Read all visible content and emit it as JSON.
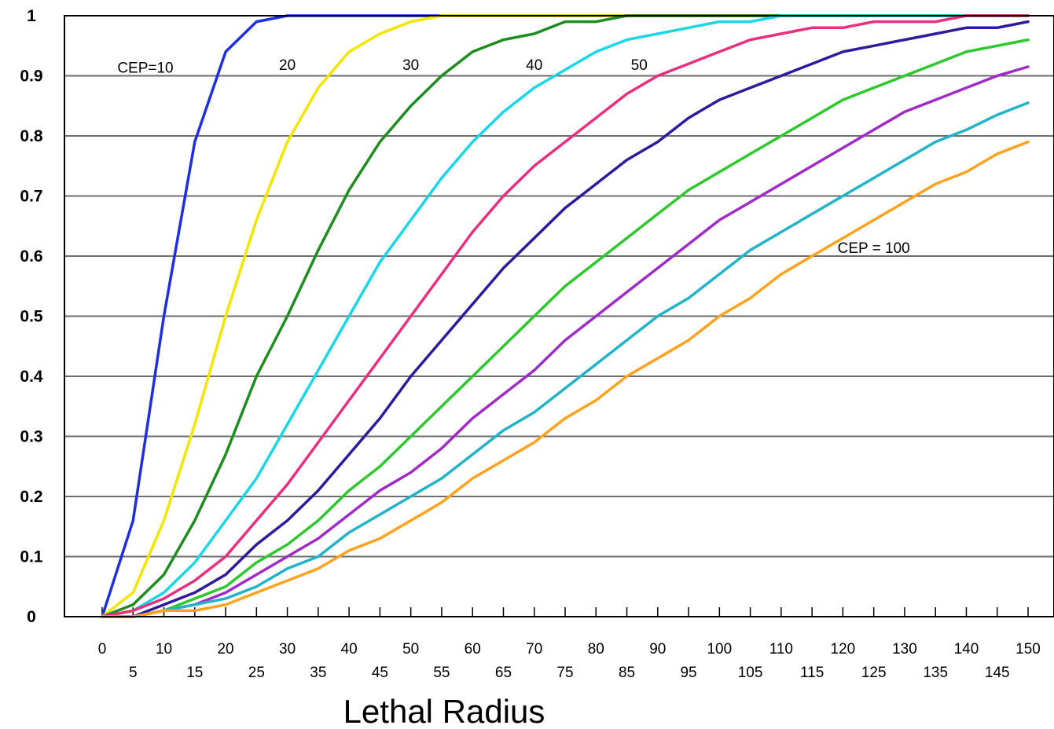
{
  "chart_data": {
    "type": "line",
    "title": "",
    "xlabel": "Lethal Radius",
    "ylabel": "",
    "xlim": [
      0,
      150
    ],
    "ylim": [
      0,
      1
    ],
    "grid": "horizontal",
    "x_ticks_upper": [
      "0",
      "10",
      "20",
      "30",
      "40",
      "50",
      "60",
      "70",
      "80",
      "90",
      "100",
      "110",
      "120",
      "130",
      "140",
      "150"
    ],
    "x_ticks_lower": [
      "5",
      "15",
      "25",
      "35",
      "45",
      "55",
      "65",
      "75",
      "85",
      "95",
      "105",
      "115",
      "125",
      "135",
      "145"
    ],
    "y_ticks": [
      "0",
      "0.1",
      "0.2",
      "0.3",
      "0.4",
      "0.5",
      "0.6",
      "0.7",
      "0.8",
      "0.9",
      "1"
    ],
    "x": [
      0,
      5,
      10,
      15,
      20,
      25,
      30,
      35,
      40,
      45,
      50,
      55,
      60,
      65,
      70,
      75,
      80,
      85,
      90,
      95,
      100,
      105,
      110,
      115,
      120,
      125,
      130,
      135,
      140,
      145,
      150
    ],
    "annotations": [
      {
        "text": "CEP=10",
        "x": 7,
        "y": 0.905
      },
      {
        "text": "20",
        "x": 30,
        "y": 0.91
      },
      {
        "text": "30",
        "x": 50,
        "y": 0.91
      },
      {
        "text": "40",
        "x": 70,
        "y": 0.91
      },
      {
        "text": "50",
        "x": 87,
        "y": 0.91
      },
      {
        "text": "CEP = 100",
        "x": 125,
        "y": 0.605
      }
    ],
    "series": [
      {
        "color": "#1f2ee0",
        "values": [
          0,
          0.16,
          0.5,
          0.79,
          0.94,
          0.99,
          1,
          1,
          1,
          1,
          1,
          1,
          1,
          1,
          1,
          1,
          1,
          1,
          1,
          1,
          1,
          1,
          1,
          1,
          1,
          1,
          1,
          1,
          1,
          1,
          1
        ]
      },
      {
        "color": "#f2e600",
        "values": [
          0,
          0.04,
          0.16,
          0.32,
          0.5,
          0.66,
          0.79,
          0.88,
          0.94,
          0.97,
          0.99,
          1,
          1,
          1,
          1,
          1,
          1,
          1,
          1,
          1,
          1,
          1,
          1,
          1,
          1,
          1,
          1,
          1,
          1,
          1,
          1
        ]
      },
      {
        "color": "#1e8c1e",
        "values": [
          0,
          0.02,
          0.07,
          0.16,
          0.27,
          0.4,
          0.5,
          0.61,
          0.71,
          0.79,
          0.85,
          0.9,
          0.94,
          0.96,
          0.97,
          0.99,
          0.99,
          1,
          1,
          1,
          1,
          1,
          1,
          1,
          1,
          1,
          1,
          1,
          1,
          1,
          1
        ]
      },
      {
        "color": "#1ad6e6",
        "values": [
          0,
          0.01,
          0.04,
          0.09,
          0.16,
          0.23,
          0.32,
          0.41,
          0.5,
          0.59,
          0.66,
          0.73,
          0.79,
          0.84,
          0.88,
          0.91,
          0.94,
          0.96,
          0.97,
          0.98,
          0.99,
          0.99,
          1,
          1,
          1,
          1,
          1,
          1,
          1,
          1,
          1
        ]
      },
      {
        "color": "#e8307f",
        "values": [
          0,
          0.01,
          0.03,
          0.06,
          0.1,
          0.16,
          0.22,
          0.29,
          0.36,
          0.43,
          0.5,
          0.57,
          0.64,
          0.7,
          0.75,
          0.79,
          0.83,
          0.87,
          0.9,
          0.92,
          0.94,
          0.96,
          0.97,
          0.98,
          0.98,
          0.99,
          0.99,
          0.99,
          1,
          1,
          1
        ]
      },
      {
        "color": "#2e1a9c",
        "values": [
          0,
          0,
          0.02,
          0.04,
          0.07,
          0.12,
          0.16,
          0.21,
          0.27,
          0.33,
          0.4,
          0.46,
          0.52,
          0.58,
          0.63,
          0.68,
          0.72,
          0.76,
          0.79,
          0.83,
          0.86,
          0.88,
          0.9,
          0.92,
          0.94,
          0.95,
          0.96,
          0.97,
          0.98,
          0.98,
          0.99
        ]
      },
      {
        "color": "#2ec82e",
        "values": [
          0,
          0,
          0.01,
          0.03,
          0.05,
          0.09,
          0.12,
          0.16,
          0.21,
          0.25,
          0.3,
          0.35,
          0.4,
          0.45,
          0.5,
          0.55,
          0.59,
          0.63,
          0.67,
          0.71,
          0.74,
          0.77,
          0.8,
          0.83,
          0.86,
          0.88,
          0.9,
          0.92,
          0.94,
          0.95,
          0.96
        ]
      },
      {
        "color": "#a02cc8",
        "values": [
          0,
          0,
          0.01,
          0.02,
          0.04,
          0.07,
          0.1,
          0.13,
          0.17,
          0.21,
          0.24,
          0.28,
          0.33,
          0.37,
          0.41,
          0.46,
          0.5,
          0.54,
          0.58,
          0.62,
          0.66,
          0.69,
          0.72,
          0.75,
          0.78,
          0.81,
          0.84,
          0.86,
          0.88,
          0.9,
          0.915
        ]
      },
      {
        "color": "#23b3c9",
        "values": [
          0,
          0,
          0.01,
          0.02,
          0.03,
          0.05,
          0.08,
          0.1,
          0.14,
          0.17,
          0.2,
          0.23,
          0.27,
          0.31,
          0.34,
          0.38,
          0.42,
          0.46,
          0.5,
          0.53,
          0.57,
          0.61,
          0.64,
          0.67,
          0.7,
          0.73,
          0.76,
          0.79,
          0.81,
          0.835,
          0.855
        ]
      },
      {
        "color": "#ffa31f",
        "values": [
          0,
          0,
          0.01,
          0.01,
          0.02,
          0.04,
          0.06,
          0.08,
          0.11,
          0.13,
          0.16,
          0.19,
          0.23,
          0.26,
          0.29,
          0.33,
          0.36,
          0.4,
          0.43,
          0.46,
          0.5,
          0.53,
          0.57,
          0.6,
          0.63,
          0.66,
          0.69,
          0.72,
          0.74,
          0.77,
          0.79
        ]
      }
    ]
  }
}
